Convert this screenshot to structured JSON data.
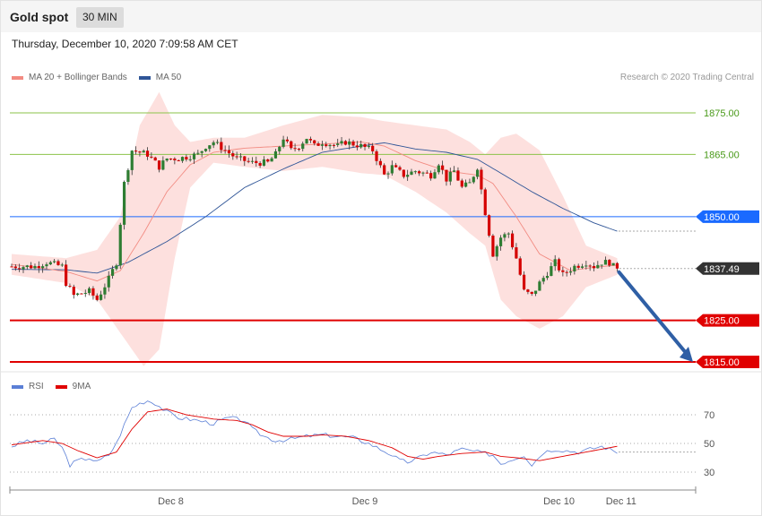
{
  "header": {
    "title": "Gold spot",
    "timeframe": "30 MIN",
    "datetime": "Thursday, December 10, 2020 7:09:58 AM CET"
  },
  "legend": {
    "price_items": [
      {
        "label": "MA 20 + Bollinger Bands",
        "color": "#f28b82"
      },
      {
        "label": "MA 50",
        "color": "#2f5597"
      }
    ],
    "rsi_items": [
      {
        "label": "RSI",
        "color": "#5b7fd6"
      },
      {
        "label": "9MA",
        "color": "#e00000"
      }
    ],
    "credit": "Research © 2020 Trading Central"
  },
  "chart_data": {
    "type": "candlestick",
    "instrument": "Gold spot",
    "timeframe": "30 MIN",
    "price_ylim": [
      1814,
      1880
    ],
    "grid": false,
    "x_ticks": [
      {
        "label": "Dec 8",
        "index": 41
      },
      {
        "label": "Dec 9",
        "index": 91
      },
      {
        "label": "Dec 10",
        "index": 141
      },
      {
        "label": "Dec 11",
        "index": 157
      }
    ],
    "last_price": {
      "value": 1837.49,
      "label": "1837.49"
    },
    "levels": [
      {
        "value": 1875.0,
        "label": "1875.00",
        "kind": "resistance",
        "color": "#8bc34a"
      },
      {
        "value": 1865.0,
        "label": "1865.00",
        "kind": "resistance",
        "color": "#8bc34a"
      },
      {
        "value": 1850.0,
        "label": "1850.00",
        "kind": "pivot",
        "color": "#1a6aff"
      },
      {
        "value": 1825.0,
        "label": "1825.00",
        "kind": "support",
        "color": "#e00000"
      },
      {
        "value": 1815.0,
        "label": "1815.00",
        "kind": "support",
        "color": "#e00000"
      }
    ],
    "forecast_arrow": {
      "from": 1837.49,
      "to": 1815.0,
      "color": "#2f5fa5"
    },
    "price_anchors": [
      [
        0,
        1838
      ],
      [
        6,
        1838
      ],
      [
        9,
        1839
      ],
      [
        13,
        1838
      ],
      [
        14,
        1834
      ],
      [
        16,
        1831
      ],
      [
        20,
        1832
      ],
      [
        22,
        1830
      ],
      [
        25,
        1835
      ],
      [
        27,
        1839
      ],
      [
        29,
        1858
      ],
      [
        31,
        1866
      ],
      [
        35,
        1865
      ],
      [
        38,
        1862
      ],
      [
        40,
        1864
      ],
      [
        43,
        1864
      ],
      [
        48,
        1865
      ],
      [
        50,
        1867
      ],
      [
        52,
        1868
      ],
      [
        55,
        1866
      ],
      [
        58,
        1864
      ],
      [
        62,
        1863
      ],
      [
        66,
        1863
      ],
      [
        68,
        1865
      ],
      [
        70,
        1869
      ],
      [
        72,
        1866
      ],
      [
        74,
        1867
      ],
      [
        76,
        1869
      ],
      [
        78,
        1867
      ],
      [
        80,
        1868
      ],
      [
        84,
        1867
      ],
      [
        86,
        1868
      ],
      [
        90,
        1867
      ],
      [
        93,
        1866
      ],
      [
        96,
        1860
      ],
      [
        98,
        1862
      ],
      [
        101,
        1860
      ],
      [
        104,
        1861
      ],
      [
        108,
        1860
      ],
      [
        110,
        1863
      ],
      [
        112,
        1859
      ],
      [
        114,
        1861
      ],
      [
        116,
        1857
      ],
      [
        118,
        1858
      ],
      [
        120,
        1862
      ],
      [
        122,
        1851
      ],
      [
        124,
        1841
      ],
      [
        126,
        1845
      ],
      [
        128,
        1846
      ],
      [
        130,
        1840
      ],
      [
        132,
        1832
      ],
      [
        134,
        1831
      ],
      [
        136,
        1834
      ],
      [
        140,
        1839
      ],
      [
        142,
        1836
      ],
      [
        145,
        1838
      ],
      [
        148,
        1839
      ],
      [
        150,
        1838
      ],
      [
        152,
        1839
      ],
      [
        154,
        1839
      ],
      [
        155,
        1838
      ],
      [
        156,
        1837.49
      ]
    ],
    "ma20": [
      [
        0,
        1838.5
      ],
      [
        14,
        1836.8
      ],
      [
        22,
        1834.5
      ],
      [
        28,
        1837
      ],
      [
        34,
        1846
      ],
      [
        40,
        1856
      ],
      [
        46,
        1862.5
      ],
      [
        52,
        1865.5
      ],
      [
        60,
        1866.5
      ],
      [
        70,
        1867
      ],
      [
        80,
        1867.5
      ],
      [
        90,
        1868
      ],
      [
        96,
        1867
      ],
      [
        104,
        1863.5
      ],
      [
        112,
        1861
      ],
      [
        120,
        1860
      ],
      [
        124,
        1858
      ],
      [
        130,
        1850
      ],
      [
        136,
        1841
      ],
      [
        144,
        1837
      ],
      [
        150,
        1837.8
      ],
      [
        156,
        1838.3
      ]
    ],
    "ma50": [
      [
        0,
        1837.3
      ],
      [
        14,
        1837.2
      ],
      [
        22,
        1836.4
      ],
      [
        30,
        1839
      ],
      [
        40,
        1844
      ],
      [
        50,
        1850
      ],
      [
        60,
        1857
      ],
      [
        70,
        1861.5
      ],
      [
        80,
        1865.5
      ],
      [
        90,
        1867
      ],
      [
        96,
        1867.8
      ],
      [
        104,
        1866.3
      ],
      [
        112,
        1865.5
      ],
      [
        120,
        1863.8
      ],
      [
        126,
        1860.5
      ],
      [
        134,
        1856
      ],
      [
        142,
        1852
      ],
      [
        150,
        1848.5
      ],
      [
        156,
        1846.5
      ]
    ],
    "bollinger_upper": [
      [
        0,
        1841
      ],
      [
        14,
        1840
      ],
      [
        22,
        1842
      ],
      [
        28,
        1850
      ],
      [
        33,
        1872
      ],
      [
        38,
        1880
      ],
      [
        42,
        1872
      ],
      [
        46,
        1868
      ],
      [
        52,
        1869
      ],
      [
        60,
        1869
      ],
      [
        70,
        1872
      ],
      [
        80,
        1874.5
      ],
      [
        90,
        1874
      ],
      [
        96,
        1873
      ],
      [
        104,
        1872
      ],
      [
        112,
        1871
      ],
      [
        118,
        1868
      ],
      [
        122,
        1865
      ],
      [
        126,
        1869
      ],
      [
        130,
        1870
      ],
      [
        136,
        1866
      ],
      [
        142,
        1855
      ],
      [
        148,
        1843
      ],
      [
        156,
        1840
      ]
    ],
    "bollinger_lower": [
      [
        0,
        1836
      ],
      [
        14,
        1834
      ],
      [
        22,
        1830
      ],
      [
        28,
        1822
      ],
      [
        34,
        1814
      ],
      [
        38,
        1818
      ],
      [
        42,
        1840
      ],
      [
        46,
        1857
      ],
      [
        52,
        1863
      ],
      [
        60,
        1862
      ],
      [
        70,
        1861
      ],
      [
        80,
        1862
      ],
      [
        90,
        1860.5
      ],
      [
        96,
        1860
      ],
      [
        104,
        1856
      ],
      [
        112,
        1851
      ],
      [
        118,
        1846
      ],
      [
        122,
        1843
      ],
      [
        126,
        1830
      ],
      [
        130,
        1826
      ],
      [
        136,
        1823
      ],
      [
        142,
        1826
      ],
      [
        148,
        1833
      ],
      [
        156,
        1836
      ]
    ],
    "rsi": {
      "ylim": [
        20,
        85
      ],
      "levels": [
        70,
        50,
        30
      ],
      "rsi_anchors": [
        [
          0,
          48
        ],
        [
          4,
          52
        ],
        [
          8,
          50
        ],
        [
          11,
          53
        ],
        [
          13,
          47
        ],
        [
          15,
          35
        ],
        [
          17,
          38
        ],
        [
          20,
          40
        ],
        [
          22,
          37
        ],
        [
          25,
          42
        ],
        [
          27,
          50
        ],
        [
          29,
          63
        ],
        [
          31,
          75
        ],
        [
          33,
          78
        ],
        [
          35,
          80
        ],
        [
          37,
          78
        ],
        [
          40,
          72
        ],
        [
          43,
          68
        ],
        [
          48,
          66
        ],
        [
          52,
          64
        ],
        [
          56,
          68
        ],
        [
          60,
          66
        ],
        [
          62,
          60
        ],
        [
          65,
          55
        ],
        [
          68,
          52
        ],
        [
          72,
          53
        ],
        [
          76,
          55
        ],
        [
          80,
          56
        ],
        [
          84,
          55
        ],
        [
          88,
          54
        ],
        [
          92,
          50
        ],
        [
          95,
          46
        ],
        [
          98,
          42
        ],
        [
          100,
          38
        ],
        [
          102,
          37
        ],
        [
          105,
          40
        ],
        [
          108,
          44
        ],
        [
          112,
          42
        ],
        [
          116,
          46
        ],
        [
          120,
          44
        ],
        [
          124,
          42
        ],
        [
          126,
          36
        ],
        [
          128,
          38
        ],
        [
          132,
          42
        ],
        [
          134,
          35
        ],
        [
          137,
          44
        ],
        [
          140,
          46
        ],
        [
          143,
          45
        ],
        [
          146,
          44
        ],
        [
          149,
          46
        ],
        [
          152,
          48
        ],
        [
          155,
          45
        ],
        [
          156,
          44
        ]
      ],
      "ma9_anchors": [
        [
          0,
          49
        ],
        [
          8,
          52
        ],
        [
          13,
          50
        ],
        [
          17,
          45
        ],
        [
          22,
          40
        ],
        [
          27,
          44
        ],
        [
          31,
          60
        ],
        [
          35,
          72
        ],
        [
          40,
          74
        ],
        [
          45,
          70
        ],
        [
          52,
          67
        ],
        [
          58,
          66
        ],
        [
          62,
          63
        ],
        [
          66,
          58
        ],
        [
          70,
          55
        ],
        [
          76,
          55
        ],
        [
          80,
          56
        ],
        [
          86,
          55
        ],
        [
          92,
          52
        ],
        [
          98,
          47
        ],
        [
          102,
          41
        ],
        [
          106,
          39
        ],
        [
          110,
          41
        ],
        [
          116,
          43
        ],
        [
          122,
          44
        ],
        [
          126,
          41
        ],
        [
          130,
          40
        ],
        [
          136,
          38
        ],
        [
          142,
          41
        ],
        [
          148,
          44
        ],
        [
          154,
          47
        ],
        [
          156,
          48
        ]
      ]
    }
  }
}
